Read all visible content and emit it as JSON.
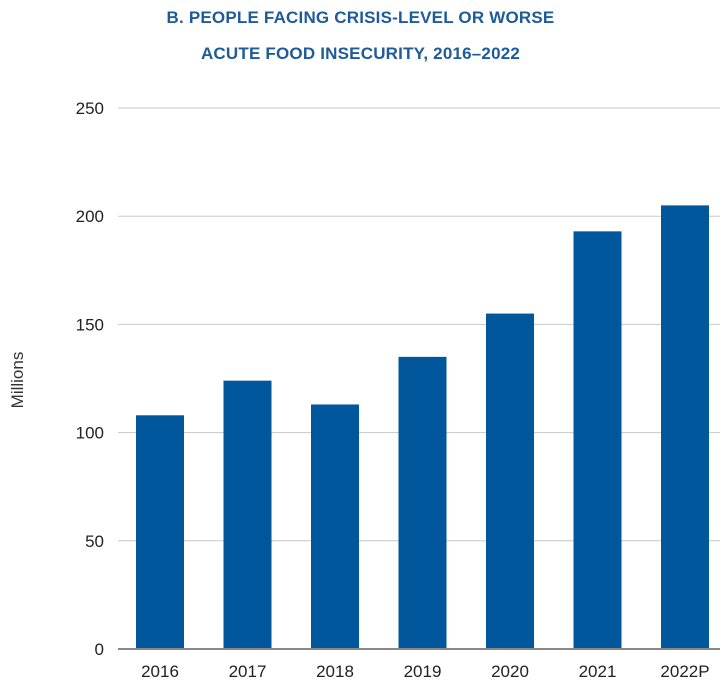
{
  "chart_data": {
    "type": "bar",
    "title_line1": "B. PEOPLE FACING CRISIS-LEVEL OR WORSE",
    "title_line2": "ACUTE FOOD INSECURITY, 2016–2022",
    "ylabel": "Millions",
    "xlabel": "",
    "categories": [
      "2016",
      "2017",
      "2018",
      "2019",
      "2020",
      "2021",
      "2022P"
    ],
    "values": [
      108,
      124,
      113,
      135,
      155,
      193,
      205
    ],
    "ylim": [
      0,
      250
    ],
    "yticks": [
      0,
      50,
      100,
      150,
      200,
      250
    ],
    "grid": true,
    "bar_color": "#00579c",
    "title_color": "#1e5b99"
  }
}
